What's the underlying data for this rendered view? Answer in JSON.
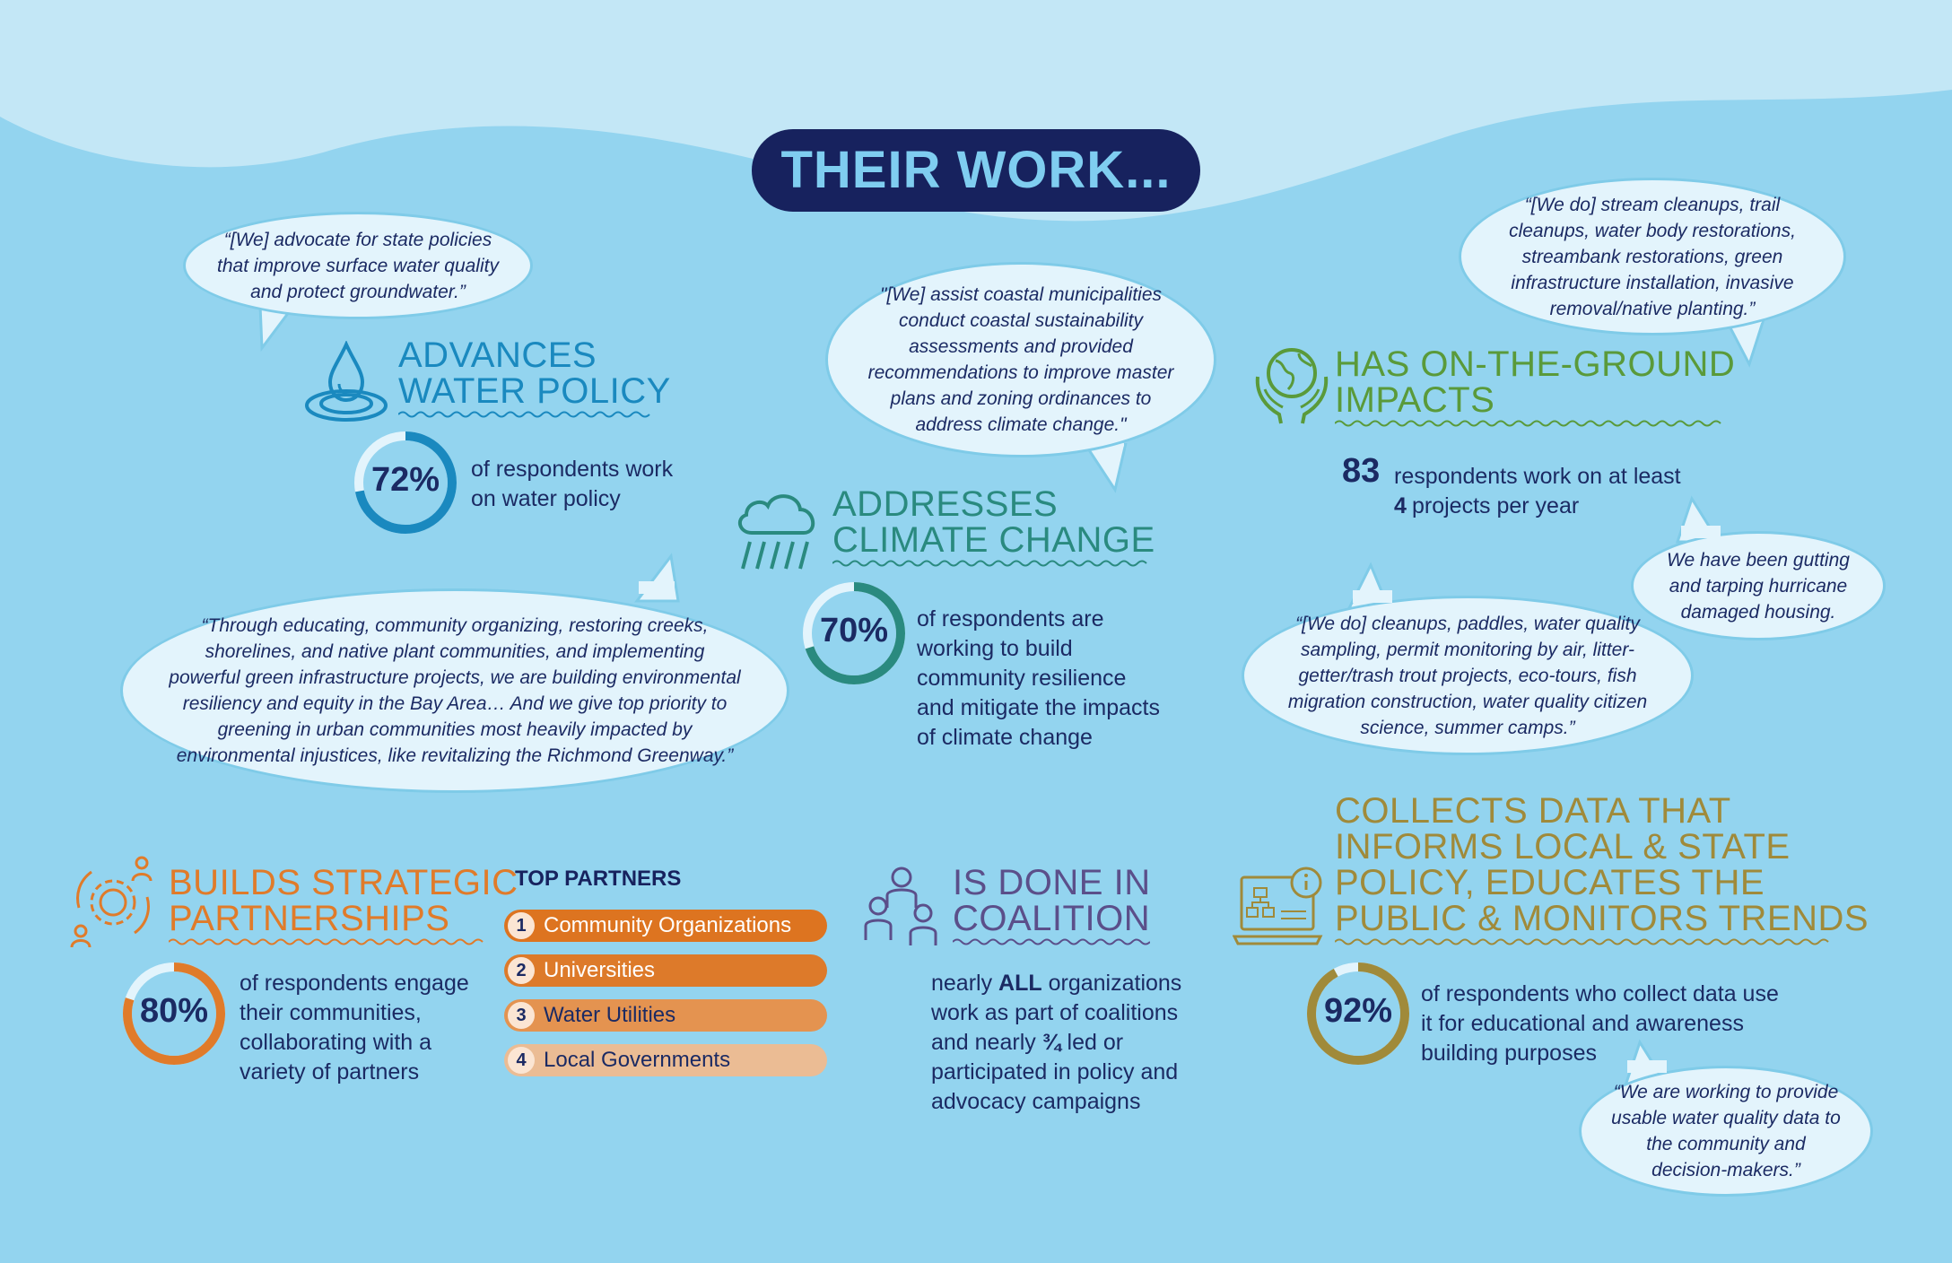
{
  "title": "THEIR WORK...",
  "colors": {
    "background": "#93d4ef",
    "wave": "#c3e7f6",
    "navy": "#17225e",
    "policy_blue": "#1a89bf",
    "climate_teal": "#2a8a7f",
    "ground_green": "#5a9a3a",
    "partner_orange": "#e07b2a",
    "coalition_purple": "#5b4f8a",
    "data_olive": "#a08a3a"
  },
  "water_policy": {
    "quote": "“[We] advocate for state policies that improve surface water quality and protect groundwater.”",
    "heading_line1": "ADVANCES",
    "heading_line2": "WATER POLICY",
    "icon": "water-drop-icon",
    "percent_label": "72%",
    "percent_value": 72,
    "stat_line1": "of respondents work",
    "stat_line2": "on water policy"
  },
  "bay_quote": "“Through educating, community organizing, restoring creeks, shorelines, and native plant communities, and implementing powerful green infrastructure projects, we are building environmental resiliency and equity in the Bay Area… And we give top priority to greening in urban communities most heavily impacted by environmental injustices, like revitalizing the Richmond Greenway.”",
  "climate": {
    "quote": "\"[We] assist coastal municipalities conduct coastal sustainability assessments and provided recommendations to improve master plans and zoning ordinances to address climate change.\"",
    "heading_line1": "ADDRESSES",
    "heading_line2": "CLIMATE CHANGE",
    "icon": "rain-cloud-icon",
    "percent_label": "70%",
    "percent_value": 70,
    "stat_lines": [
      "of respondents are",
      "working to build",
      "community resilience",
      "and mitigate the impacts",
      "of climate change"
    ]
  },
  "ground": {
    "quote_top": "“[We do] stream cleanups, trail cleanups, water body restorations, streambank restorations, green infrastructure installation, invasive removal/native planting.”",
    "heading_line1": "HAS ON-THE-GROUND",
    "heading_line2": "IMPACTS",
    "icon": "earth-hands-icon",
    "count": "83",
    "stat_line1": "respondents work on at least",
    "count2": "4",
    "stat_line2": "projects per year",
    "quote_small": "We have been gutting and tarping hurricane damaged housing.",
    "quote_mid": "“[We do] cleanups, paddles, water quality sampling, permit monitoring by air, litter-getter/trash trout projects, eco-tours, fish migration construction, water quality citizen science, summer camps.”"
  },
  "partnerships": {
    "heading_line1": "BUILDS STRATEGIC",
    "heading_line2": "PARTNERSHIPS",
    "icon": "gear-network-icon",
    "percent_label": "80%",
    "percent_value": 80,
    "stat_lines": [
      "of respondents engage",
      "their communities,",
      "collaborating with a",
      "variety of partners"
    ],
    "top_partners_label": "TOP PARTNERS",
    "partners": [
      {
        "num": "1",
        "label": "Community Organizations",
        "color": "#dd7420"
      },
      {
        "num": "2",
        "label": "Universities",
        "color": "#dd7a2a"
      },
      {
        "num": "3",
        "label": "Water Utilities",
        "color": "#e49350"
      },
      {
        "num": "4",
        "label": "Local Governments",
        "color": "#ebbc94"
      }
    ]
  },
  "coalition": {
    "heading_line1": "IS DONE IN",
    "heading_line2": "COALITION",
    "icon": "people-group-icon",
    "line1_pre": "nearly ",
    "line1_bold": "ALL",
    "line1_post": " organizations",
    "line2": "work as part of coalitions",
    "line3_pre": "and nearly ",
    "line3_bold": "¾",
    "line3_post": " led or",
    "line4": "participated in policy and",
    "line5": "advocacy campaigns"
  },
  "data": {
    "heading_lines": [
      "COLLECTS DATA THAT",
      "INFORMS LOCAL & STATE",
      "POLICY, EDUCATES THE",
      "PUBLIC & MONITORS TRENDS"
    ],
    "icon": "laptop-chart-icon",
    "percent_label": "92%",
    "percent_value": 92,
    "stat_lines": [
      "of respondents who collect data use",
      "it for educational and awareness",
      "building purposes"
    ],
    "quote": "“We are working to provide usable water quality data to the community and decision-makers.”"
  }
}
